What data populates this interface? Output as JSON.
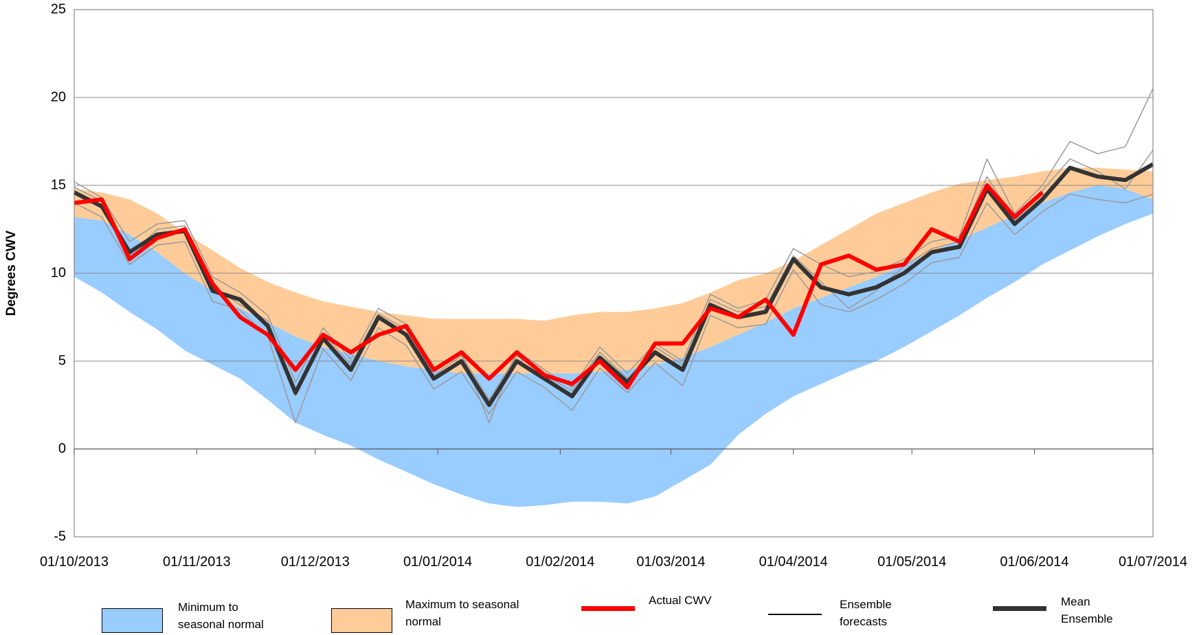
{
  "chart_data": {
    "type": "line",
    "y_label": "Degrees CWV",
    "ylim": [
      -5,
      25
    ],
    "yticks": [
      -5,
      0,
      5,
      10,
      15,
      20,
      25
    ],
    "grid": true,
    "xlim": [
      "2013-10-01",
      "2014-07-01"
    ],
    "xticks": [
      {
        "value": "2013-10-01",
        "label": "01/10/2013"
      },
      {
        "value": "2013-11-01",
        "label": "01/11/2013"
      },
      {
        "value": "2013-12-01",
        "label": "01/12/2013"
      },
      {
        "value": "2014-01-01",
        "label": "01/01/2014"
      },
      {
        "value": "2014-02-01",
        "label": "01/02/2014"
      },
      {
        "value": "2014-03-01",
        "label": "01/03/2014"
      },
      {
        "value": "2014-04-01",
        "label": "01/04/2014"
      },
      {
        "value": "2014-05-01",
        "label": "01/05/2014"
      },
      {
        "value": "2014-06-01",
        "label": "01/06/2014"
      },
      {
        "value": "2014-07-01",
        "label": "01/07/2014"
      }
    ],
    "x": [
      "2013-10-01",
      "2013-10-08",
      "2013-10-15",
      "2013-10-22",
      "2013-10-29",
      "2013-11-05",
      "2013-11-12",
      "2013-11-19",
      "2013-11-26",
      "2013-12-03",
      "2013-12-10",
      "2013-12-17",
      "2013-12-24",
      "2013-12-31",
      "2014-01-07",
      "2014-01-14",
      "2014-01-21",
      "2014-01-28",
      "2014-02-04",
      "2014-02-11",
      "2014-02-18",
      "2014-02-25",
      "2014-03-04",
      "2014-03-11",
      "2014-03-18",
      "2014-03-25",
      "2014-04-01",
      "2014-04-08",
      "2014-04-15",
      "2014-04-22",
      "2014-04-29",
      "2014-05-06",
      "2014-05-13",
      "2014-05-20",
      "2014-05-27",
      "2014-06-03",
      "2014-06-10",
      "2014-06-17",
      "2014-06-24",
      "2014-07-01"
    ],
    "normal": [
      13.2,
      13.0,
      12.2,
      11.2,
      10.0,
      9.0,
      8.0,
      7.2,
      6.4,
      5.8,
      5.4,
      5.0,
      4.7,
      4.5,
      4.3,
      4.3,
      4.3,
      4.3,
      4.3,
      4.4,
      4.5,
      4.8,
      5.2,
      5.8,
      6.5,
      7.2,
      8.0,
      8.6,
      9.2,
      9.8,
      10.5,
      11.2,
      11.9,
      12.6,
      13.3,
      14.0,
      14.6,
      15.0,
      14.8,
      14.2
    ],
    "series": [
      {
        "name": "Minimum to seasonal normal",
        "color": "#99ccff",
        "kind": "band-low",
        "values": [
          9.8,
          8.9,
          7.8,
          6.8,
          5.6,
          4.8,
          4.0,
          2.8,
          1.5,
          0.8,
          0.2,
          -0.6,
          -1.3,
          -2.0,
          -2.6,
          -3.1,
          -3.3,
          -3.2,
          -3.0,
          -3.0,
          -3.1,
          -2.7,
          -1.8,
          -0.9,
          0.8,
          2.0,
          3.0,
          3.7,
          4.4,
          5.0,
          5.8,
          6.7,
          7.6,
          8.6,
          9.5,
          10.5,
          11.3,
          12.1,
          12.8,
          13.4
        ]
      },
      {
        "name": "Maximum to seasonal normal",
        "color": "#ffcc99",
        "kind": "band-high",
        "values": [
          14.8,
          14.6,
          14.2,
          13.4,
          12.3,
          11.3,
          10.3,
          9.5,
          8.9,
          8.4,
          8.1,
          7.8,
          7.6,
          7.4,
          7.4,
          7.4,
          7.4,
          7.3,
          7.6,
          7.8,
          7.8,
          8.0,
          8.3,
          8.9,
          9.6,
          10.0,
          10.7,
          11.6,
          12.5,
          13.4,
          14.0,
          14.6,
          15.1,
          15.3,
          15.5,
          15.8,
          16.0,
          16.0,
          15.9,
          15.8
        ]
      },
      {
        "name": "Actual CWV",
        "color": "#ff0000",
        "kind": "thick",
        "values": [
          14.0,
          14.2,
          10.8,
          12.0,
          12.5,
          9.4,
          7.5,
          6.5,
          4.5,
          6.5,
          5.5,
          6.5,
          7.0,
          4.5,
          5.5,
          4.0,
          5.5,
          4.2,
          3.7,
          5.0,
          3.5,
          6.0,
          6.0,
          8.0,
          7.5,
          8.5,
          6.5,
          10.5,
          11.0,
          10.2,
          10.5,
          12.5,
          11.8,
          15.0,
          13.2,
          14.6,
          null,
          null,
          null,
          null
        ]
      },
      {
        "name": "Ensemble forecasts",
        "color": "#999999",
        "kind": "members",
        "members": [
          [
            15.2,
            14.3,
            11.8,
            12.8,
            13.0,
            9.8,
            8.9,
            7.6,
            3.8,
            6.9,
            5.1,
            8.0,
            7.1,
            4.6,
            5.5,
            1.5,
            5.6,
            4.5,
            3.5,
            5.8,
            4.3,
            6.0,
            5.0,
            8.8,
            8.0,
            8.5,
            11.4,
            10.5,
            9.8,
            10.1,
            10.8,
            11.8,
            12.1,
            16.5,
            13.4,
            15.0,
            17.5,
            16.8,
            17.2,
            20.5
          ],
          [
            14.0,
            13.2,
            10.5,
            11.6,
            11.8,
            8.4,
            7.9,
            6.4,
            1.5,
            5.7,
            3.9,
            6.9,
            5.9,
            3.4,
            4.4,
            2.0,
            4.4,
            3.5,
            2.2,
            4.6,
            3.2,
            4.9,
            3.6,
            7.6,
            6.9,
            7.1,
            10.2,
            8.2,
            7.8,
            8.5,
            9.4,
            10.6,
            10.9,
            14.0,
            12.2,
            13.5,
            14.5,
            14.2,
            14.0,
            14.5
          ],
          [
            14.9,
            14.1,
            11.0,
            12.5,
            12.7,
            9.3,
            8.2,
            7.3,
            3.0,
            6.6,
            4.8,
            7.7,
            6.8,
            4.2,
            5.3,
            2.8,
            5.3,
            4.2,
            3.3,
            5.5,
            4.0,
            5.8,
            4.8,
            8.5,
            7.8,
            8.1,
            11.0,
            9.5,
            8.0,
            9.0,
            10.4,
            11.4,
            11.8,
            15.5,
            13.0,
            14.7,
            16.5,
            15.8,
            14.8,
            17.0
          ]
        ]
      },
      {
        "name": "Mean Ensemble",
        "color": "#333333",
        "kind": "thick",
        "values": [
          14.6,
          13.8,
          11.2,
          12.2,
          12.4,
          9.0,
          8.5,
          7.0,
          3.2,
          6.3,
          4.5,
          7.5,
          6.5,
          4.0,
          5.0,
          2.5,
          5.0,
          4.0,
          3.0,
          5.2,
          3.8,
          5.5,
          4.5,
          8.2,
          7.5,
          7.8,
          10.8,
          9.2,
          8.8,
          9.2,
          10.0,
          11.2,
          11.5,
          14.8,
          12.8,
          14.2,
          16.0,
          15.5,
          15.3,
          16.2
        ]
      }
    ]
  }
}
